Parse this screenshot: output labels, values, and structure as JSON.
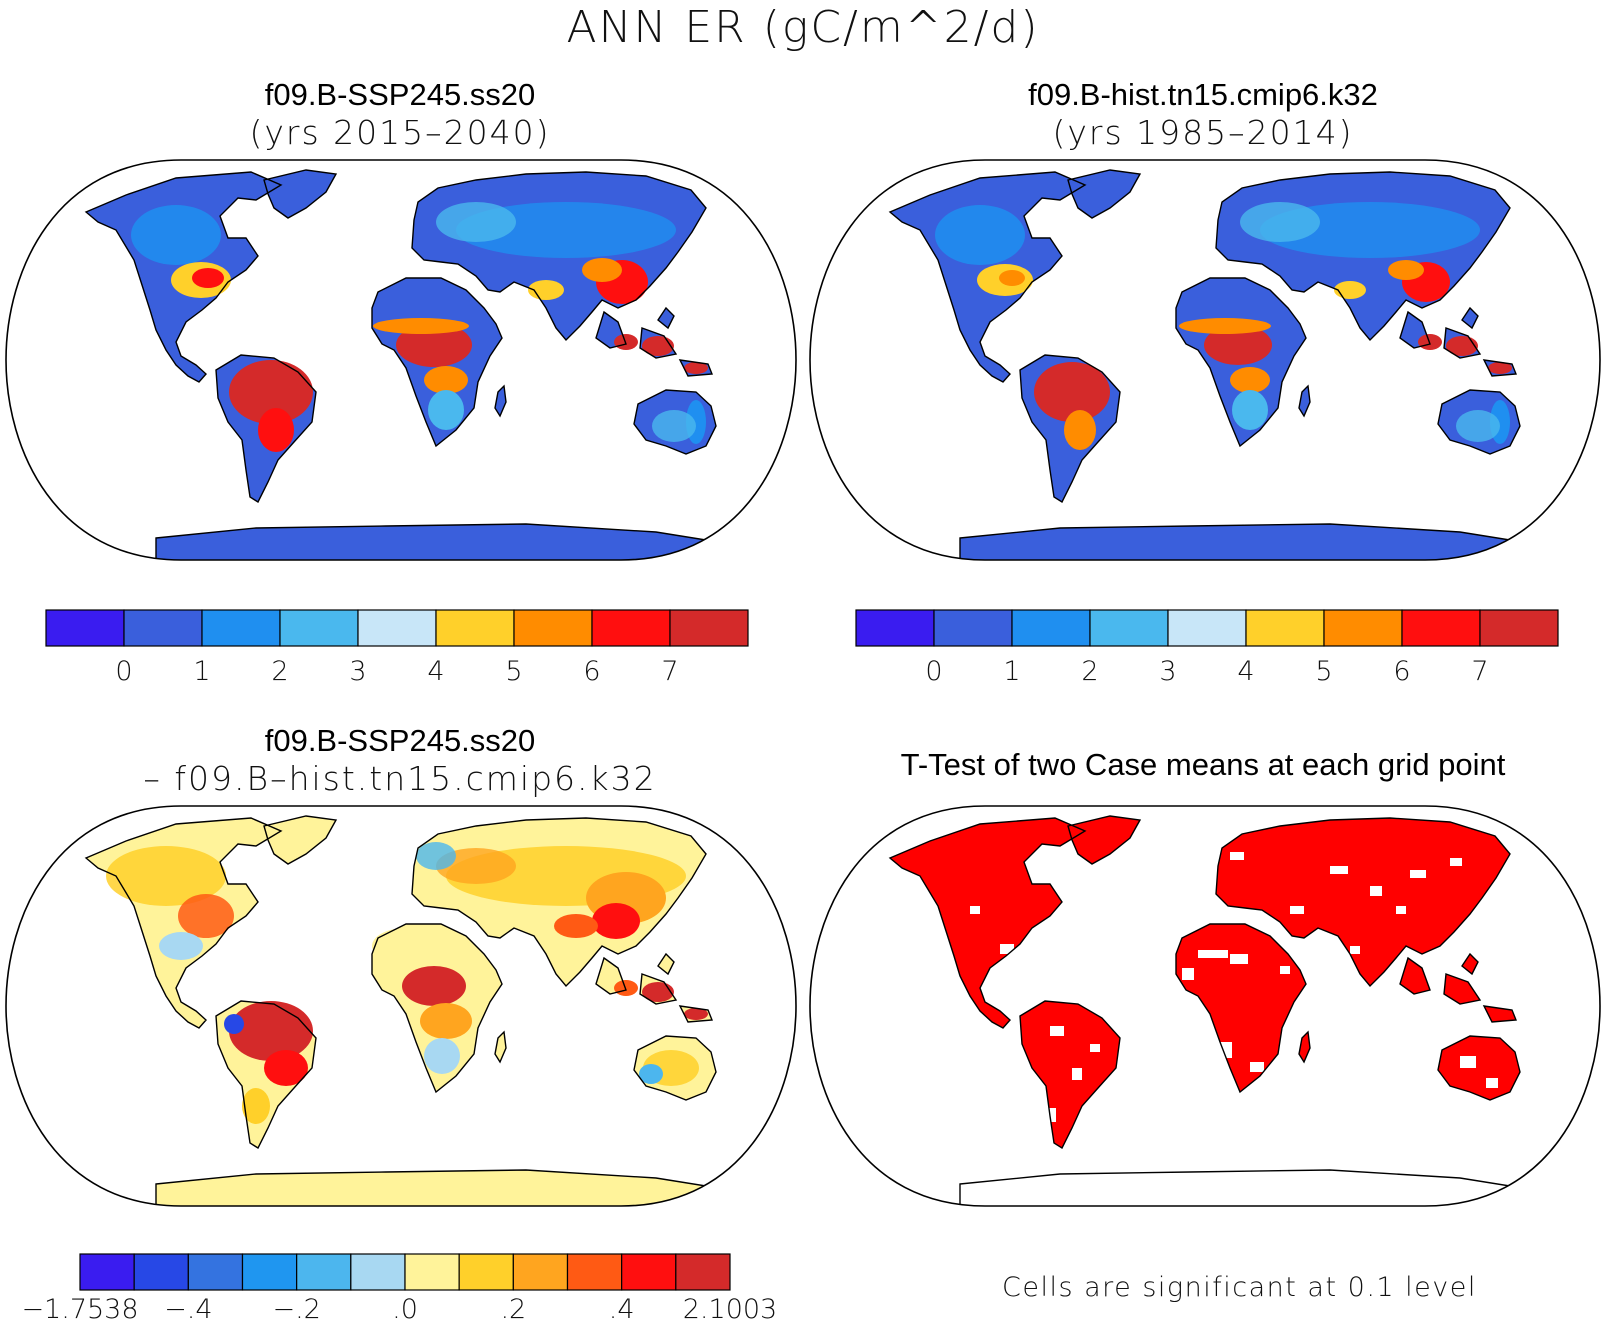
{
  "title": "ANN ER (gC/m^2/d)",
  "panels": {
    "top_left": {
      "case": "f09.B-SSP245.ss20",
      "period": "(yrs 2015–2040)"
    },
    "top_right": {
      "case": "f09.B-hist.tn15.cmip6.k32",
      "period": "(yrs 1985–2014)"
    },
    "bottom_left": {
      "case": "f09.B-SSP245.ss20",
      "minus_case": "– f09.B–hist.tn15.cmip6.k32"
    },
    "bottom_right": {
      "title": "T-Test of two Case means at each grid point",
      "footnote": "Cells are significant at 0.1 level",
      "significant_color": "#ff0000"
    }
  },
  "colorbars": {
    "absolute": {
      "colors": [
        "#3a1cf0",
        "#3a5fdc",
        "#1f8ff0",
        "#4ab8ee",
        "#c8e6f8",
        "#ffd02a",
        "#ff8c00",
        "#ff0f0f",
        "#d42a2a"
      ],
      "labels": [
        "0",
        "1",
        "2",
        "3",
        "4",
        "5",
        "6",
        "7"
      ]
    },
    "difference": {
      "colors": [
        "#3a1cf0",
        "#2748e6",
        "#3473e0",
        "#1f96f0",
        "#4cb6ee",
        "#a8d8f2",
        "#fff39a",
        "#ffd02a",
        "#ffa51f",
        "#ff5a14",
        "#ff0f0f",
        "#d42a2a"
      ],
      "labels": [
        "−1.7538",
        "−.4",
        "−.2",
        ".0",
        ".2",
        ".4",
        "2.1003"
      ]
    }
  }
}
